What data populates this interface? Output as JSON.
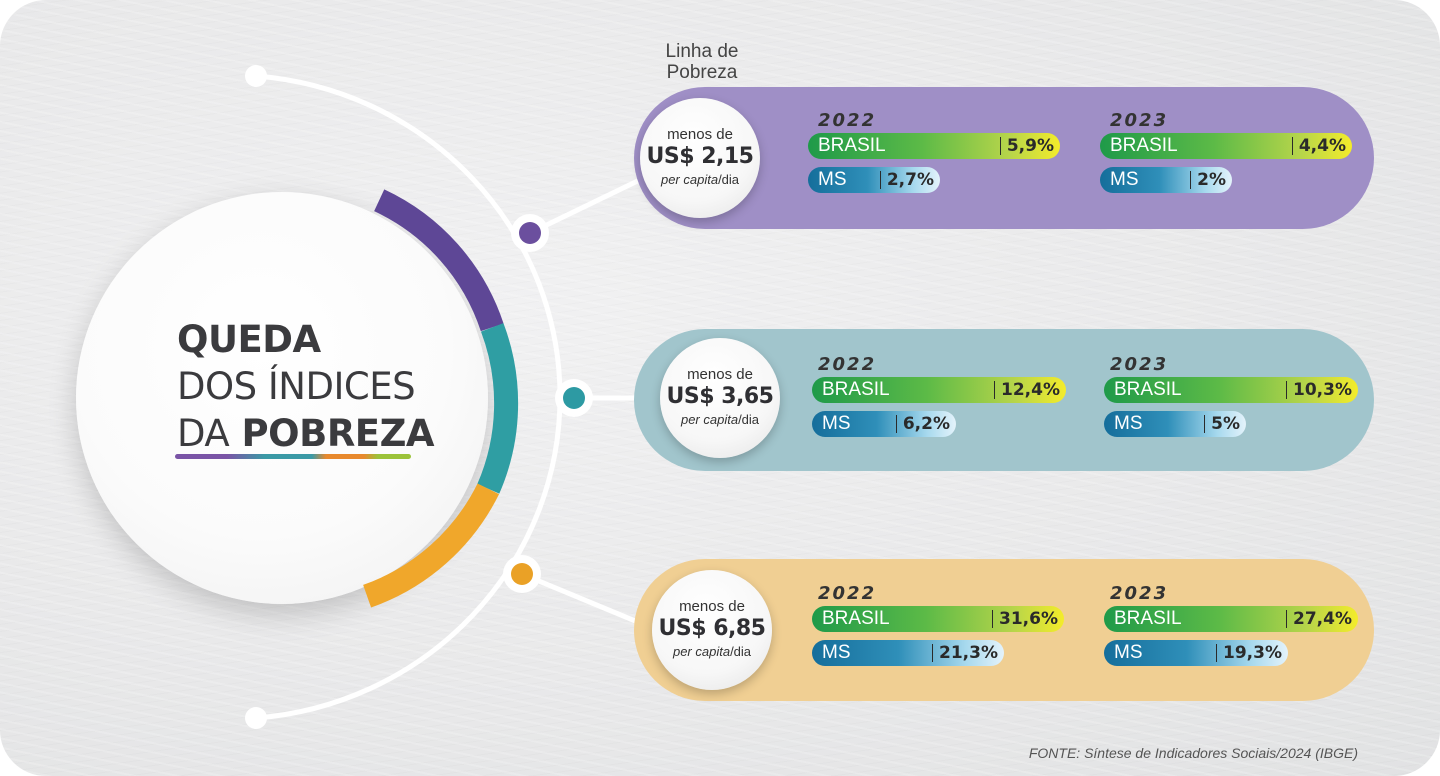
{
  "title": {
    "line1": "QUEDA",
    "line2": "DOS ÍNDICES",
    "line3_a": "DA",
    "line3_b": "POBREZA"
  },
  "linha_label": {
    "line1": "Linha de",
    "line2": "Pobreza"
  },
  "colors": {
    "purple": "#9f8fc6",
    "teal": "#a1c5cc",
    "orange": "#f0cf93",
    "brasil_bar": "#5cba47",
    "ms_bar": "#2f8fb9"
  },
  "chart_data": {
    "type": "table",
    "columns": [
      "2022",
      "2023"
    ],
    "rows": [
      {
        "threshold": {
          "prefix": "menos de",
          "value": "US$ 2,15",
          "unit_a": "per capita",
          "unit_b": "/dia"
        },
        "y2022": {
          "brasil": "5,9%",
          "ms": "2,7%"
        },
        "y2023": {
          "brasil": "4,4%",
          "ms": "2%"
        }
      },
      {
        "threshold": {
          "prefix": "menos de",
          "value": "US$ 3,65",
          "unit_a": "per capita",
          "unit_b": "/dia"
        },
        "y2022": {
          "brasil": "12,4%",
          "ms": "6,2%"
        },
        "y2023": {
          "brasil": "10,3%",
          "ms": "5%"
        }
      },
      {
        "threshold": {
          "prefix": "menos de",
          "value": "US$ 6,85",
          "unit_a": "per capita",
          "unit_b": "/dia"
        },
        "y2022": {
          "brasil": "31,6%",
          "ms": "21,3%"
        },
        "y2023": {
          "brasil": "27,4%",
          "ms": "19,3%"
        }
      }
    ],
    "series_labels": {
      "brasil": "BRASIL",
      "ms": "MS"
    }
  },
  "source": "FONTE:  Síntese de Indicadores Sociais/2024 (IBGE)"
}
